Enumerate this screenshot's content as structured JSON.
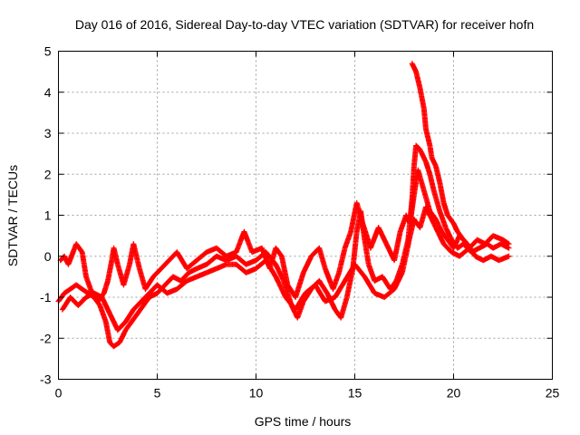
{
  "chart_data": {
    "type": "scatter",
    "title": "Day 016 of 2016, Sidereal Day-to-day VTEC variation (SDTVAR) for receiver hofn",
    "xlabel": "GPS time / hours",
    "ylabel": "SDTVAR / TECUs",
    "xlim": [
      0,
      25
    ],
    "ylim": [
      -3,
      5
    ],
    "xticks": [
      0,
      5,
      10,
      15,
      20,
      25
    ],
    "yticks": [
      -3,
      -2,
      -1,
      0,
      1,
      2,
      3,
      4,
      5
    ],
    "grid": true,
    "marker": "+",
    "color": "#ff0000",
    "series": [
      {
        "name": "track-1",
        "points": [
          [
            0.0,
            -1.1
          ],
          [
            0.3,
            -0.9
          ],
          [
            0.6,
            -0.8
          ],
          [
            0.9,
            -0.7
          ],
          [
            1.2,
            -0.8
          ],
          [
            1.5,
            -0.9
          ],
          [
            1.8,
            -1.0
          ],
          [
            2.1,
            -1.2
          ],
          [
            2.4,
            -1.6
          ],
          [
            2.6,
            -2.1
          ],
          [
            2.8,
            -2.2
          ],
          [
            3.1,
            -2.1
          ],
          [
            3.4,
            -1.8
          ],
          [
            3.7,
            -1.6
          ],
          [
            4.0,
            -1.4
          ],
          [
            4.3,
            -1.2
          ],
          [
            4.6,
            -1.0
          ],
          [
            5.0,
            -0.9
          ],
          [
            5.4,
            -0.7
          ],
          [
            5.8,
            -0.5
          ],
          [
            6.2,
            -0.6
          ],
          [
            6.6,
            -0.4
          ],
          [
            7.0,
            -0.3
          ],
          [
            7.5,
            -0.2
          ],
          [
            8.0,
            0.0
          ],
          [
            8.5,
            -0.1
          ],
          [
            9.0,
            0.0
          ],
          [
            9.5,
            -0.2
          ],
          [
            10.0,
            -0.1
          ],
          [
            10.5,
            0.1
          ],
          [
            11.0,
            -0.2
          ],
          [
            11.4,
            -0.6
          ],
          [
            11.8,
            -1.2
          ],
          [
            12.1,
            -1.5
          ],
          [
            12.4,
            -1.1
          ],
          [
            12.8,
            -0.8
          ],
          [
            13.2,
            -0.6
          ],
          [
            13.6,
            -0.9
          ],
          [
            14.0,
            -1.3
          ],
          [
            14.3,
            -1.5
          ],
          [
            14.6,
            -1.0
          ],
          [
            14.9,
            -0.3
          ],
          [
            15.1,
            0.6
          ],
          [
            15.3,
            1.1
          ],
          [
            15.5,
            0.4
          ],
          [
            15.7,
            -0.2
          ],
          [
            16.0,
            -0.6
          ],
          [
            16.4,
            -0.5
          ],
          [
            16.8,
            -0.8
          ],
          [
            17.1,
            -0.6
          ],
          [
            17.4,
            -0.2
          ],
          [
            17.7,
            0.4
          ],
          [
            17.9,
            1.4
          ],
          [
            18.0,
            2.2
          ],
          [
            18.1,
            2.7
          ],
          [
            18.3,
            2.6
          ],
          [
            18.6,
            2.3
          ],
          [
            18.8,
            2.0
          ],
          [
            19.0,
            1.6
          ],
          [
            19.3,
            1.1
          ],
          [
            19.6,
            0.7
          ],
          [
            19.9,
            0.4
          ],
          [
            20.2,
            0.2
          ],
          [
            20.5,
            0.3
          ],
          [
            20.9,
            0.1
          ],
          [
            21.3,
            0.2
          ],
          [
            21.7,
            0.3
          ],
          [
            22.0,
            0.2
          ],
          [
            22.4,
            0.3
          ],
          [
            22.8,
            0.2
          ]
        ]
      },
      {
        "name": "track-2",
        "points": [
          [
            0.1,
            -0.1
          ],
          [
            0.3,
            0.0
          ],
          [
            0.5,
            -0.2
          ],
          [
            0.9,
            0.3
          ],
          [
            1.2,
            0.1
          ],
          [
            1.4,
            -0.5
          ],
          [
            1.7,
            -0.9
          ],
          [
            2.0,
            -1.1
          ],
          [
            2.3,
            -0.9
          ],
          [
            2.5,
            -0.6
          ],
          [
            2.7,
            -0.1
          ],
          [
            2.8,
            0.2
          ],
          [
            3.0,
            -0.2
          ],
          [
            3.3,
            -0.7
          ],
          [
            3.6,
            -0.2
          ],
          [
            3.8,
            0.3
          ],
          [
            4.1,
            -0.3
          ],
          [
            4.4,
            -0.8
          ],
          [
            4.8,
            -0.5
          ],
          [
            5.2,
            -0.3
          ],
          [
            5.6,
            -0.1
          ],
          [
            6.0,
            0.1
          ],
          [
            6.5,
            -0.3
          ],
          [
            7.0,
            -0.1
          ],
          [
            7.5,
            0.1
          ],
          [
            8.0,
            0.2
          ],
          [
            8.5,
            0.0
          ],
          [
            9.0,
            0.1
          ],
          [
            9.4,
            0.6
          ],
          [
            9.8,
            0.1
          ],
          [
            10.3,
            0.2
          ],
          [
            10.7,
            -0.3
          ],
          [
            11.0,
            0.2
          ],
          [
            11.3,
            0.0
          ],
          [
            11.6,
            -0.7
          ],
          [
            12.0,
            -1.0
          ],
          [
            12.4,
            -0.4
          ],
          [
            12.8,
            0.0
          ],
          [
            13.2,
            0.2
          ],
          [
            13.5,
            -0.3
          ],
          [
            13.9,
            -0.8
          ],
          [
            14.2,
            -0.4
          ],
          [
            14.5,
            0.2
          ],
          [
            14.8,
            0.6
          ],
          [
            15.1,
            1.3
          ],
          [
            15.4,
            0.8
          ],
          [
            15.8,
            0.2
          ],
          [
            16.2,
            0.7
          ],
          [
            16.6,
            0.3
          ],
          [
            17.0,
            -0.1
          ],
          [
            17.3,
            0.6
          ],
          [
            17.6,
            1.0
          ],
          [
            17.8,
            0.8
          ],
          [
            18.0,
            1.5
          ],
          [
            18.2,
            2.1
          ],
          [
            18.5,
            1.6
          ],
          [
            18.8,
            1.1
          ],
          [
            19.1,
            0.9
          ],
          [
            19.4,
            0.6
          ],
          [
            19.7,
            0.4
          ],
          [
            20.0,
            0.2
          ],
          [
            20.3,
            0.5
          ],
          [
            20.7,
            0.3
          ],
          [
            21.1,
            0.0
          ],
          [
            21.5,
            -0.1
          ],
          [
            21.9,
            0.0
          ],
          [
            22.3,
            -0.1
          ],
          [
            22.8,
            0.0
          ]
        ]
      },
      {
        "name": "track-3",
        "points": [
          [
            0.2,
            -1.3
          ],
          [
            0.6,
            -1.0
          ],
          [
            1.0,
            -1.2
          ],
          [
            1.4,
            -1.0
          ],
          [
            1.8,
            -0.9
          ],
          [
            2.2,
            -1.0
          ],
          [
            2.6,
            -1.4
          ],
          [
            3.0,
            -1.8
          ],
          [
            3.4,
            -1.6
          ],
          [
            3.8,
            -1.3
          ],
          [
            4.2,
            -1.1
          ],
          [
            4.6,
            -0.9
          ],
          [
            5.0,
            -0.7
          ],
          [
            5.5,
            -0.9
          ],
          [
            6.0,
            -0.8
          ],
          [
            6.5,
            -0.6
          ],
          [
            7.0,
            -0.5
          ],
          [
            7.5,
            -0.4
          ],
          [
            8.0,
            -0.3
          ],
          [
            8.5,
            -0.2
          ],
          [
            9.0,
            -0.2
          ],
          [
            9.5,
            -0.4
          ],
          [
            10.0,
            -0.3
          ],
          [
            10.5,
            -0.1
          ],
          [
            11.0,
            -0.5
          ],
          [
            11.5,
            -1.0
          ],
          [
            12.0,
            -1.3
          ],
          [
            12.5,
            -0.9
          ],
          [
            13.0,
            -0.7
          ],
          [
            13.5,
            -1.1
          ],
          [
            14.0,
            -1.0
          ],
          [
            14.5,
            -0.6
          ],
          [
            15.0,
            -0.2
          ],
          [
            15.5,
            -0.5
          ],
          [
            16.0,
            -0.9
          ],
          [
            16.5,
            -1.0
          ],
          [
            17.0,
            -0.8
          ],
          [
            17.4,
            -0.4
          ],
          [
            17.8,
            0.5
          ],
          [
            18.0,
            0.9
          ],
          [
            18.3,
            0.7
          ],
          [
            18.6,
            1.2
          ],
          [
            18.9,
            0.9
          ],
          [
            19.2,
            0.6
          ],
          [
            19.5,
            0.3
          ],
          [
            19.9,
            0.1
          ],
          [
            20.3,
            0.0
          ],
          [
            20.8,
            0.2
          ],
          [
            21.2,
            0.4
          ],
          [
            21.6,
            0.3
          ],
          [
            22.0,
            0.5
          ],
          [
            22.5,
            0.4
          ],
          [
            22.8,
            0.3
          ]
        ]
      },
      {
        "name": "track-4",
        "points": [
          [
            17.9,
            4.7
          ],
          [
            18.1,
            4.5
          ],
          [
            18.3,
            4.1
          ],
          [
            18.5,
            3.6
          ],
          [
            18.6,
            3.1
          ],
          [
            18.8,
            2.7
          ],
          [
            18.9,
            2.4
          ],
          [
            19.1,
            2.2
          ],
          [
            19.3,
            1.8
          ],
          [
            19.5,
            1.3
          ],
          [
            19.7,
            1.0
          ],
          [
            20.0,
            0.8
          ],
          [
            20.2,
            0.6
          ],
          [
            20.5,
            0.4
          ]
        ]
      }
    ]
  }
}
